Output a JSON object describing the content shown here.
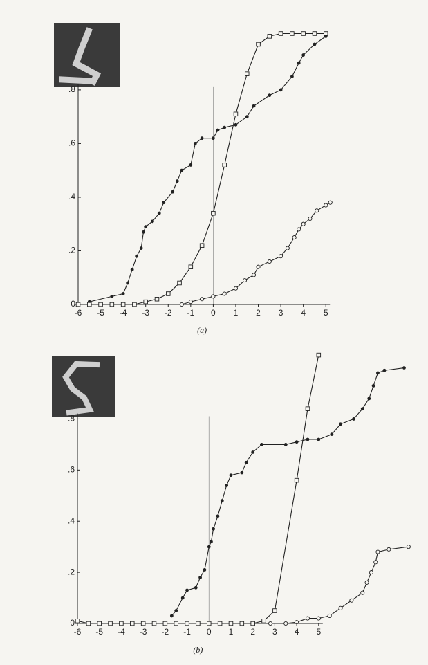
{
  "chart_data": [
    {
      "type": "line",
      "caption": "(a)",
      "xlim": [
        -6,
        5.3
      ],
      "ylim": [
        0,
        1.05
      ],
      "xticks": [
        -6,
        -5,
        -4,
        -3,
        -2,
        -1,
        0,
        1,
        2,
        3,
        4,
        5
      ],
      "yticks": [
        0,
        {
          "value": 0.2,
          "label": ".2"
        },
        {
          "value": 0.4,
          "label": ".4"
        },
        {
          "value": 0.6,
          "label": ".6"
        },
        {
          "value": 0.8,
          "label": ".8"
        }
      ],
      "series": [
        {
          "marker": "filled-circle",
          "color": "#222222",
          "x": [
            -5.5,
            -4.5,
            -4,
            -3.8,
            -3.6,
            -3.4,
            -3.2,
            -3.1,
            -3.0,
            -2.7,
            -2.4,
            -2.2,
            -1.8,
            -1.6,
            -1.4,
            -1.0,
            -0.8,
            -0.5,
            0,
            0.2,
            0.5,
            1.0,
            1.5,
            1.8,
            2.5,
            3.0,
            3.5,
            3.8,
            4.0,
            4.5,
            5.0
          ],
          "values": [
            0.01,
            0.03,
            0.04,
            0.08,
            0.13,
            0.18,
            0.21,
            0.27,
            0.29,
            0.31,
            0.34,
            0.38,
            0.42,
            0.46,
            0.5,
            0.52,
            0.6,
            0.62,
            0.62,
            0.65,
            0.66,
            0.67,
            0.7,
            0.74,
            0.78,
            0.8,
            0.85,
            0.9,
            0.93,
            0.97,
            1.0
          ]
        },
        {
          "marker": "square",
          "color": "#222222",
          "x": [
            -6,
            -5.5,
            -5,
            -4.5,
            -4,
            -3.5,
            -3,
            -2.5,
            -2,
            -1.5,
            -1,
            -0.5,
            0,
            0.5,
            1,
            1.5,
            2,
            2.5,
            3,
            3.5,
            4,
            4.5,
            5
          ],
          "values": [
            0,
            0,
            0,
            0,
            0,
            0,
            0.01,
            0.02,
            0.04,
            0.08,
            0.14,
            0.22,
            0.34,
            0.52,
            0.71,
            0.86,
            0.97,
            1.0,
            1.01,
            1.01,
            1.01,
            1.01,
            1.01
          ]
        },
        {
          "marker": "open-circle",
          "color": "#222222",
          "x": [
            -1.4,
            -1,
            -0.5,
            0,
            0.5,
            1.0,
            1.4,
            1.8,
            2.0,
            2.5,
            3.0,
            3.3,
            3.6,
            3.8,
            4.0,
            4.3,
            4.6,
            5.0,
            5.2
          ],
          "values": [
            0,
            0.01,
            0.02,
            0.03,
            0.04,
            0.06,
            0.09,
            0.11,
            0.14,
            0.16,
            0.18,
            0.21,
            0.25,
            0.28,
            0.3,
            0.32,
            0.35,
            0.37,
            0.38
          ]
        }
      ]
    },
    {
      "type": "line",
      "caption": "(b)",
      "xlim": [
        -6,
        9.2
      ],
      "ylim": [
        0,
        1.08
      ],
      "xticks": [
        -6,
        -5,
        -4,
        -3,
        -2,
        -1,
        0,
        1,
        2,
        3,
        4,
        5
      ],
      "yticks": [
        0,
        {
          "value": 0.2,
          "label": ".2"
        },
        {
          "value": 0.4,
          "label": ".4"
        },
        {
          "value": 0.6,
          "label": ".6"
        },
        {
          "value": 0.8,
          "label": ".8"
        }
      ],
      "series": [
        {
          "marker": "filled-circle",
          "color": "#222222",
          "x": [
            -1.7,
            -1.5,
            -1.2,
            -1.0,
            -0.6,
            -0.4,
            -0.2,
            0,
            0.1,
            0.2,
            0.4,
            0.6,
            0.8,
            1.0,
            1.5,
            1.7,
            2.0,
            2.4,
            3.5,
            4.0,
            4.5,
            5.0,
            5.6,
            6.0,
            6.6,
            7.0,
            7.3,
            7.5,
            7.7,
            8.0,
            8.9
          ],
          "values": [
            0.03,
            0.05,
            0.1,
            0.13,
            0.14,
            0.18,
            0.21,
            0.3,
            0.32,
            0.37,
            0.42,
            0.48,
            0.54,
            0.58,
            0.59,
            0.63,
            0.67,
            0.7,
            0.7,
            0.71,
            0.72,
            0.72,
            0.74,
            0.78,
            0.8,
            0.84,
            0.88,
            0.93,
            0.98,
            0.99,
            1.0
          ]
        },
        {
          "marker": "square",
          "color": "#222222",
          "x": [
            -6,
            -5.5,
            -5,
            -4.5,
            -4,
            -3.5,
            -3,
            -2.5,
            -2,
            -1.5,
            -1,
            -0.5,
            0,
            0.5,
            1,
            1.5,
            2,
            2.5,
            3.0,
            4.0,
            4.5,
            5.0
          ],
          "values": [
            0.01,
            0,
            0,
            0,
            0,
            0,
            0,
            0,
            0,
            0,
            0,
            0,
            0,
            0,
            0,
            0,
            0,
            0.01,
            0.05,
            0.56,
            0.84,
            1.05
          ]
        },
        {
          "marker": "open-circle",
          "color": "#222222",
          "x": [
            2.8,
            3.5,
            4.0,
            4.5,
            5.0,
            5.5,
            6.0,
            6.5,
            7.0,
            7.2,
            7.4,
            7.6,
            7.7,
            8.2,
            9.1
          ],
          "values": [
            0,
            0,
            0.005,
            0.02,
            0.02,
            0.03,
            0.06,
            0.09,
            0.12,
            0.16,
            0.2,
            0.24,
            0.28,
            0.29,
            0.3
          ]
        }
      ]
    }
  ]
}
